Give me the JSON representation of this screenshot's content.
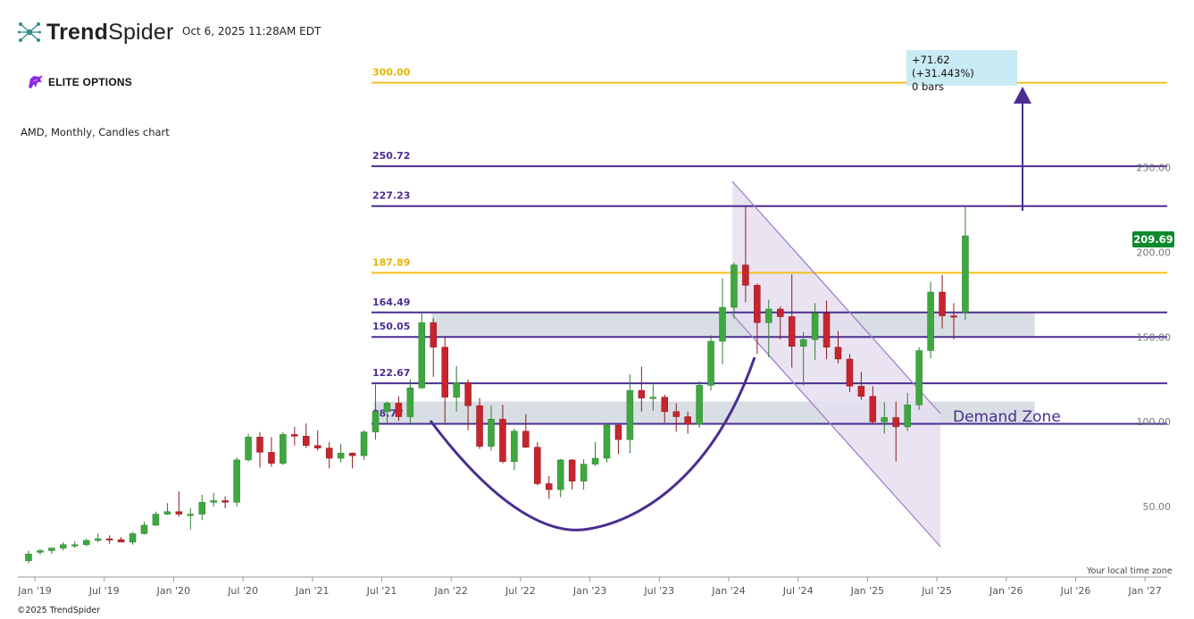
{
  "header": {
    "brand_bold": "Trend",
    "brand_light": "Spider",
    "timestamp": "Oct 6, 2025 11:28AM EDT",
    "partner_logo_text": "ELITE OPTIONS",
    "chart_title": "AMD, Monthly, Candles chart"
  },
  "footer": {
    "copyright": "©2025 TrendSpider",
    "timezone_note": "Your local time zone"
  },
  "annotations": {
    "measure_line1": "+71.62 (+31.443%)",
    "measure_line2": "0 bars",
    "price_tag": "209.69",
    "demand_zone": "Demand Zone"
  },
  "colors": {
    "up": "#3da83f",
    "down": "#c8242d",
    "purple": "#4b2e91",
    "gold": "#f2c21b",
    "zone": "#d4dae0",
    "channel_fill": "#e6dff0"
  },
  "chart_data": {
    "type": "candlestick",
    "symbol": "AMD",
    "interval": "Monthly",
    "x_ticks": [
      "Jan '19",
      "Jul '19",
      "Jan '20",
      "Jul '20",
      "Jan '21",
      "Jul '21",
      "Jan '22",
      "Jul '22",
      "Jan '23",
      "Jul '23",
      "Jan '24",
      "Jul '24",
      "Jan '25",
      "Jul '25",
      "Jan '26",
      "Jul '26",
      "Jan '27"
    ],
    "y_ticks": [
      "50.00",
      "100.00",
      "150.00",
      "200.00",
      "250.00"
    ],
    "ylim": [
      0,
      290
    ],
    "levels": [
      {
        "value": 300.0,
        "label": "300.00",
        "color": "gold"
      },
      {
        "value": 250.72,
        "label": "250.72",
        "color": "purple"
      },
      {
        "value": 227.23,
        "label": "227.23",
        "color": "purple"
      },
      {
        "value": 187.89,
        "label": "187.89",
        "color": "gold"
      },
      {
        "value": 164.49,
        "label": "164.49",
        "color": "purple"
      },
      {
        "value": 150.05,
        "label": "150.05",
        "color": "purple"
      },
      {
        "value": 122.67,
        "label": "122.67",
        "color": "purple"
      },
      {
        "value": 98.77,
        "label": "98.77",
        "color": "purple"
      }
    ],
    "zones": [
      {
        "top": 164.49,
        "bottom": 150.05,
        "from": "2021-12",
        "to": "2026-04"
      },
      {
        "top": 112,
        "bottom": 98.77,
        "from": "2021-07",
        "to": "2026-04"
      }
    ],
    "candles": [
      {
        "t": "2019-01",
        "o": 18.0,
        "h": 24.0,
        "l": 16.5,
        "c": 22.0
      },
      {
        "t": "2019-02",
        "o": 23.0,
        "h": 25.0,
        "l": 21.5,
        "c": 24.0
      },
      {
        "t": "2019-03",
        "o": 24.0,
        "h": 26.0,
        "l": 22.0,
        "c": 25.5
      },
      {
        "t": "2019-04",
        "o": 25.5,
        "h": 29.0,
        "l": 24.0,
        "c": 27.5
      },
      {
        "t": "2019-05",
        "o": 27.5,
        "h": 29.5,
        "l": 25.5,
        "c": 27.5
      },
      {
        "t": "2019-06",
        "o": 27.5,
        "h": 31.0,
        "l": 26.5,
        "c": 30.0
      },
      {
        "t": "2019-07",
        "o": 30.0,
        "h": 34.0,
        "l": 29.0,
        "c": 31.0
      },
      {
        "t": "2019-08",
        "o": 31.0,
        "h": 33.0,
        "l": 28.0,
        "c": 30.5
      },
      {
        "t": "2019-09",
        "o": 30.5,
        "h": 32.0,
        "l": 29.0,
        "c": 29.0
      },
      {
        "t": "2019-10",
        "o": 29.0,
        "h": 35.0,
        "l": 27.5,
        "c": 34.0
      },
      {
        "t": "2019-11",
        "o": 34.0,
        "h": 41.0,
        "l": 33.5,
        "c": 39.0
      },
      {
        "t": "2019-12",
        "o": 39.0,
        "h": 47.0,
        "l": 38.5,
        "c": 45.5
      },
      {
        "t": "2020-01",
        "o": 45.5,
        "h": 52.0,
        "l": 45.0,
        "c": 47.0
      },
      {
        "t": "2020-02",
        "o": 47.0,
        "h": 59.0,
        "l": 44.0,
        "c": 45.5
      },
      {
        "t": "2020-03",
        "o": 45.5,
        "h": 49.0,
        "l": 36.5,
        "c": 45.5
      },
      {
        "t": "2020-04",
        "o": 45.5,
        "h": 57.0,
        "l": 42.0,
        "c": 52.5
      },
      {
        "t": "2020-05",
        "o": 52.5,
        "h": 58.0,
        "l": 50.0,
        "c": 53.5
      },
      {
        "t": "2020-06",
        "o": 53.5,
        "h": 56.0,
        "l": 49.0,
        "c": 52.5
      },
      {
        "t": "2020-07",
        "o": 52.5,
        "h": 79.0,
        "l": 50.0,
        "c": 77.5
      },
      {
        "t": "2020-08",
        "o": 77.5,
        "h": 93.0,
        "l": 76.5,
        "c": 91.0
      },
      {
        "t": "2020-09",
        "o": 91.0,
        "h": 94.0,
        "l": 73.0,
        "c": 82.0
      },
      {
        "t": "2020-10",
        "o": 82.0,
        "h": 91.0,
        "l": 73.5,
        "c": 75.5
      },
      {
        "t": "2020-11",
        "o": 75.5,
        "h": 94.0,
        "l": 74.5,
        "c": 92.5
      },
      {
        "t": "2020-12",
        "o": 92.5,
        "h": 97.0,
        "l": 86.0,
        "c": 91.5
      },
      {
        "t": "2021-01",
        "o": 91.5,
        "h": 99.0,
        "l": 84.5,
        "c": 86.0
      },
      {
        "t": "2021-02",
        "o": 86.0,
        "h": 95.0,
        "l": 83.0,
        "c": 84.5
      },
      {
        "t": "2021-03",
        "o": 84.5,
        "h": 88.0,
        "l": 72.5,
        "c": 78.5
      },
      {
        "t": "2021-04",
        "o": 78.5,
        "h": 87.0,
        "l": 76.0,
        "c": 81.5
      },
      {
        "t": "2021-05",
        "o": 81.5,
        "h": 82.0,
        "l": 72.5,
        "c": 80.0
      },
      {
        "t": "2021-06",
        "o": 80.0,
        "h": 95.0,
        "l": 77.5,
        "c": 94.0
      },
      {
        "t": "2021-07",
        "o": 94.0,
        "h": 122.0,
        "l": 89.5,
        "c": 106.0
      },
      {
        "t": "2021-08",
        "o": 106.0,
        "h": 112.0,
        "l": 99.0,
        "c": 111.0
      },
      {
        "t": "2021-09",
        "o": 111.0,
        "h": 115.0,
        "l": 100.5,
        "c": 103.0
      },
      {
        "t": "2021-10",
        "o": 103.0,
        "h": 125.0,
        "l": 99.5,
        "c": 120.0
      },
      {
        "t": "2021-11",
        "o": 120.0,
        "h": 164.5,
        "l": 119.5,
        "c": 158.5
      },
      {
        "t": "2021-12",
        "o": 158.5,
        "h": 161.0,
        "l": 126.5,
        "c": 144.0
      },
      {
        "t": "2022-01",
        "o": 144.0,
        "h": 150.0,
        "l": 99.5,
        "c": 114.5
      },
      {
        "t": "2022-02",
        "o": 114.5,
        "h": 133.0,
        "l": 106.0,
        "c": 123.0
      },
      {
        "t": "2022-03",
        "o": 123.0,
        "h": 125.0,
        "l": 95.0,
        "c": 109.5
      },
      {
        "t": "2022-04",
        "o": 109.5,
        "h": 114.0,
        "l": 84.0,
        "c": 85.5
      },
      {
        "t": "2022-05",
        "o": 85.5,
        "h": 109.5,
        "l": 83.0,
        "c": 101.5
      },
      {
        "t": "2022-06",
        "o": 101.5,
        "h": 110.0,
        "l": 75.5,
        "c": 76.5
      },
      {
        "t": "2022-07",
        "o": 76.5,
        "h": 96.0,
        "l": 71.5,
        "c": 94.5
      },
      {
        "t": "2022-08",
        "o": 94.5,
        "h": 104.5,
        "l": 84.5,
        "c": 85.0
      },
      {
        "t": "2022-09",
        "o": 85.0,
        "h": 88.0,
        "l": 62.5,
        "c": 63.5
      },
      {
        "t": "2022-10",
        "o": 63.5,
        "h": 68.0,
        "l": 54.5,
        "c": 60.0
      },
      {
        "t": "2022-11",
        "o": 60.0,
        "h": 78.0,
        "l": 55.5,
        "c": 77.5
      },
      {
        "t": "2022-12",
        "o": 77.5,
        "h": 78.0,
        "l": 60.0,
        "c": 65.0
      },
      {
        "t": "2023-01",
        "o": 65.0,
        "h": 78.0,
        "l": 60.0,
        "c": 75.0
      },
      {
        "t": "2023-02",
        "o": 75.0,
        "h": 88.0,
        "l": 74.0,
        "c": 78.5
      },
      {
        "t": "2023-03",
        "o": 78.5,
        "h": 99.0,
        "l": 76.0,
        "c": 98.0
      },
      {
        "t": "2023-04",
        "o": 98.0,
        "h": 98.5,
        "l": 81.0,
        "c": 89.5
      },
      {
        "t": "2023-05",
        "o": 89.5,
        "h": 128.0,
        "l": 81.5,
        "c": 118.5
      },
      {
        "t": "2023-06",
        "o": 118.5,
        "h": 132.5,
        "l": 106.0,
        "c": 114.0
      },
      {
        "t": "2023-07",
        "o": 114.0,
        "h": 122.0,
        "l": 106.5,
        "c": 114.5
      },
      {
        "t": "2023-08",
        "o": 114.5,
        "h": 116.0,
        "l": 99.5,
        "c": 106.0
      },
      {
        "t": "2023-09",
        "o": 106.0,
        "h": 111.0,
        "l": 94.0,
        "c": 103.0
      },
      {
        "t": "2023-10",
        "o": 103.0,
        "h": 106.0,
        "l": 93.0,
        "c": 98.5
      },
      {
        "t": "2023-11",
        "o": 98.5,
        "h": 124.0,
        "l": 96.5,
        "c": 121.5
      },
      {
        "t": "2023-12",
        "o": 121.5,
        "h": 151.0,
        "l": 118.5,
        "c": 147.5
      },
      {
        "t": "2024-01",
        "o": 147.5,
        "h": 184.5,
        "l": 134.0,
        "c": 167.5
      },
      {
        "t": "2024-02",
        "o": 167.5,
        "h": 194.0,
        "l": 161.0,
        "c": 192.5
      },
      {
        "t": "2024-03",
        "o": 192.5,
        "h": 227.0,
        "l": 170.5,
        "c": 180.5
      },
      {
        "t": "2024-04",
        "o": 180.5,
        "h": 181.5,
        "l": 140.0,
        "c": 158.5
      },
      {
        "t": "2024-05",
        "o": 158.5,
        "h": 172.0,
        "l": 138.0,
        "c": 166.5
      },
      {
        "t": "2024-06",
        "o": 166.5,
        "h": 168.0,
        "l": 148.5,
        "c": 162.0
      },
      {
        "t": "2024-07",
        "o": 162.0,
        "h": 187.0,
        "l": 132.0,
        "c": 144.5
      },
      {
        "t": "2024-08",
        "o": 144.5,
        "h": 153.0,
        "l": 121.5,
        "c": 148.5
      },
      {
        "t": "2024-09",
        "o": 148.5,
        "h": 170.0,
        "l": 136.5,
        "c": 164.0
      },
      {
        "t": "2024-10",
        "o": 164.0,
        "h": 171.5,
        "l": 137.0,
        "c": 144.0
      },
      {
        "t": "2024-11",
        "o": 144.0,
        "h": 153.5,
        "l": 134.5,
        "c": 137.0
      },
      {
        "t": "2024-12",
        "o": 137.0,
        "h": 140.0,
        "l": 117.5,
        "c": 121.0
      },
      {
        "t": "2025-01",
        "o": 121.0,
        "h": 129.5,
        "l": 113.0,
        "c": 115.0
      },
      {
        "t": "2025-02",
        "o": 115.0,
        "h": 121.0,
        "l": 98.5,
        "c": 100.0
      },
      {
        "t": "2025-03",
        "o": 100.0,
        "h": 111.5,
        "l": 93.0,
        "c": 102.5
      },
      {
        "t": "2025-04",
        "o": 102.5,
        "h": 112.0,
        "l": 76.5,
        "c": 97.0
      },
      {
        "t": "2025-05",
        "o": 97.0,
        "h": 117.0,
        "l": 94.5,
        "c": 110.0
      },
      {
        "t": "2025-06",
        "o": 110.0,
        "h": 144.0,
        "l": 107.0,
        "c": 142.0
      },
      {
        "t": "2025-07",
        "o": 142.0,
        "h": 182.5,
        "l": 137.5,
        "c": 176.5
      },
      {
        "t": "2025-08",
        "o": 176.5,
        "h": 186.5,
        "l": 155.0,
        "c": 162.5
      },
      {
        "t": "2025-09",
        "o": 162.5,
        "h": 170.0,
        "l": 148.5,
        "c": 162.0
      },
      {
        "t": "2025-10",
        "o": 164.5,
        "h": 226.5,
        "l": 160.0,
        "c": 209.69
      }
    ]
  }
}
